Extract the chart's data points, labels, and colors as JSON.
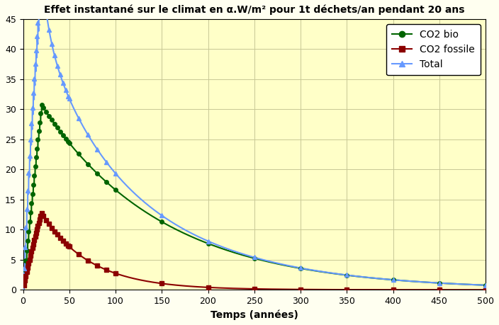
{
  "title": "Effet instantané sur le climat en α.W/m² pour 1t déchets/an pendant 20 ans",
  "xlabel": "Temps (années)",
  "xlim": [
    0,
    500
  ],
  "ylim": [
    0,
    45
  ],
  "xticks": [
    0,
    50,
    100,
    150,
    200,
    250,
    300,
    350,
    400,
    450,
    500
  ],
  "yticks": [
    0,
    5,
    10,
    15,
    20,
    25,
    30,
    35,
    40,
    45
  ],
  "bg_color": "#FFFFF0",
  "plot_bg": "#FFFFC8",
  "grid_color": "#C8C896",
  "series": [
    {
      "label": "CO2 bio",
      "color": "#006400",
      "marker": "o",
      "markersize": 4
    },
    {
      "label": "CO2 fossile",
      "color": "#8B0000",
      "marker": "s",
      "markersize": 4
    },
    {
      "label": "Total",
      "color": "#6699FF",
      "marker": "^",
      "markersize": 4
    }
  ],
  "title_fontsize": 10,
  "tick_fontsize": 9,
  "xlabel_fontsize": 10
}
